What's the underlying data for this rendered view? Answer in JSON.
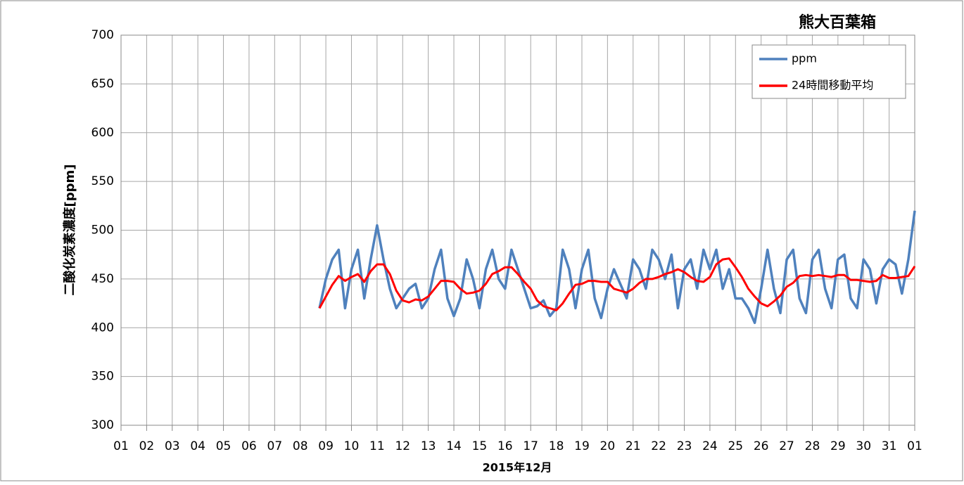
{
  "chart_data": {
    "type": "line",
    "title": "熊大百葉箱",
    "xlabel": "2015年12月",
    "ylabel": "二酸化炭素濃度[ppm]",
    "x": [
      7.75,
      8,
      8.25,
      8.5,
      8.75,
      9,
      9.25,
      9.5,
      9.75,
      10,
      10.25,
      10.5,
      10.75,
      11,
      11.25,
      11.5,
      11.75,
      12,
      12.25,
      12.5,
      12.75,
      13,
      13.25,
      13.5,
      13.75,
      14,
      14.25,
      14.5,
      14.75,
      15,
      15.25,
      15.5,
      15.75,
      16,
      16.25,
      16.5,
      16.75,
      17,
      17.25,
      17.5,
      17.75,
      18,
      18.25,
      18.5,
      18.75,
      19,
      19.25,
      19.5,
      19.75,
      20,
      20.25,
      20.5,
      20.75,
      21,
      21.25,
      21.5,
      21.75,
      22,
      22.25,
      22.5,
      22.75,
      23,
      23.25,
      23.5,
      23.75,
      24,
      24.25,
      24.5,
      24.75,
      25,
      25.25,
      25.5,
      25.75,
      26,
      26.25,
      26.5,
      26.75,
      27,
      27.25,
      27.5,
      27.75,
      28,
      28.25,
      28.5,
      28.75,
      29,
      29.25,
      29.5,
      29.75,
      30,
      30.25,
      30.5,
      30.75,
      31
    ],
    "series": [
      {
        "name": "ppm",
        "color": "#4f81bd",
        "values": [
          420,
          450,
          470,
          480,
          420,
          460,
          480,
          430,
          470,
          505,
          470,
          440,
          420,
          430,
          440,
          445,
          420,
          430,
          460,
          480,
          430,
          412,
          430,
          470,
          450,
          420,
          460,
          480,
          450,
          440,
          480,
          460,
          440,
          420,
          422,
          428,
          412,
          420,
          480,
          460,
          420,
          460,
          480,
          430,
          410,
          440,
          460,
          445,
          430,
          470,
          460,
          440,
          480,
          470,
          450,
          475,
          420,
          460,
          470,
          440,
          480,
          460,
          480,
          440,
          460,
          430,
          430,
          420,
          405,
          440,
          480,
          440,
          415,
          470,
          480,
          430,
          415,
          470,
          480,
          440,
          420,
          470,
          475,
          430,
          420,
          470,
          460,
          425,
          460,
          470,
          465,
          435,
          470,
          520
        ]
      },
      {
        "name": "24時間移動平均",
        "color": "#ff0000",
        "values": [
          420,
          432,
          444,
          453,
          448,
          452,
          455,
          447,
          458,
          465,
          465,
          455,
          438,
          428,
          426,
          429,
          428,
          432,
          440,
          448,
          448,
          447,
          440,
          435,
          436,
          438,
          445,
          455,
          458,
          462,
          462,
          455,
          447,
          440,
          428,
          422,
          420,
          418,
          425,
          435,
          444,
          445,
          448,
          448,
          447,
          447,
          440,
          438,
          436,
          440,
          446,
          450,
          450,
          452,
          455,
          457,
          460,
          457,
          452,
          448,
          447,
          452,
          465,
          470,
          471,
          462,
          452,
          440,
          432,
          425,
          422,
          427,
          433,
          442,
          446,
          453,
          454,
          453,
          454,
          453,
          452,
          454,
          454,
          449,
          449,
          448,
          447,
          448,
          454,
          451,
          451,
          452,
          453,
          463
        ]
      }
    ],
    "xlim": [
      0,
      31
    ],
    "xticks": [
      {
        "value": 0,
        "label": "01"
      },
      {
        "value": 1,
        "label": "02"
      },
      {
        "value": 2,
        "label": "03"
      },
      {
        "value": 3,
        "label": "04"
      },
      {
        "value": 4,
        "label": "05"
      },
      {
        "value": 5,
        "label": "06"
      },
      {
        "value": 6,
        "label": "07"
      },
      {
        "value": 7,
        "label": "08"
      },
      {
        "value": 8,
        "label": "09"
      },
      {
        "value": 9,
        "label": "10"
      },
      {
        "value": 10,
        "label": "11"
      },
      {
        "value": 11,
        "label": "12"
      },
      {
        "value": 12,
        "label": "13"
      },
      {
        "value": 13,
        "label": "14"
      },
      {
        "value": 14,
        "label": "15"
      },
      {
        "value": 15,
        "label": "16"
      },
      {
        "value": 16,
        "label": "17"
      },
      {
        "value": 17,
        "label": "18"
      },
      {
        "value": 18,
        "label": "19"
      },
      {
        "value": 19,
        "label": "20"
      },
      {
        "value": 20,
        "label": "21"
      },
      {
        "value": 21,
        "label": "22"
      },
      {
        "value": 22,
        "label": "23"
      },
      {
        "value": 23,
        "label": "24"
      },
      {
        "value": 24,
        "label": "25"
      },
      {
        "value": 25,
        "label": "26"
      },
      {
        "value": 26,
        "label": "27"
      },
      {
        "value": 27,
        "label": "28"
      },
      {
        "value": 28,
        "label": "29"
      },
      {
        "value": 29,
        "label": "30"
      },
      {
        "value": 30,
        "label": "31"
      },
      {
        "value": 31,
        "label": "01"
      }
    ],
    "ylim": [
      300,
      700
    ],
    "yticks": [
      300,
      350,
      400,
      450,
      500,
      550,
      600,
      650,
      700
    ],
    "grid": true,
    "legend": "upper right"
  }
}
